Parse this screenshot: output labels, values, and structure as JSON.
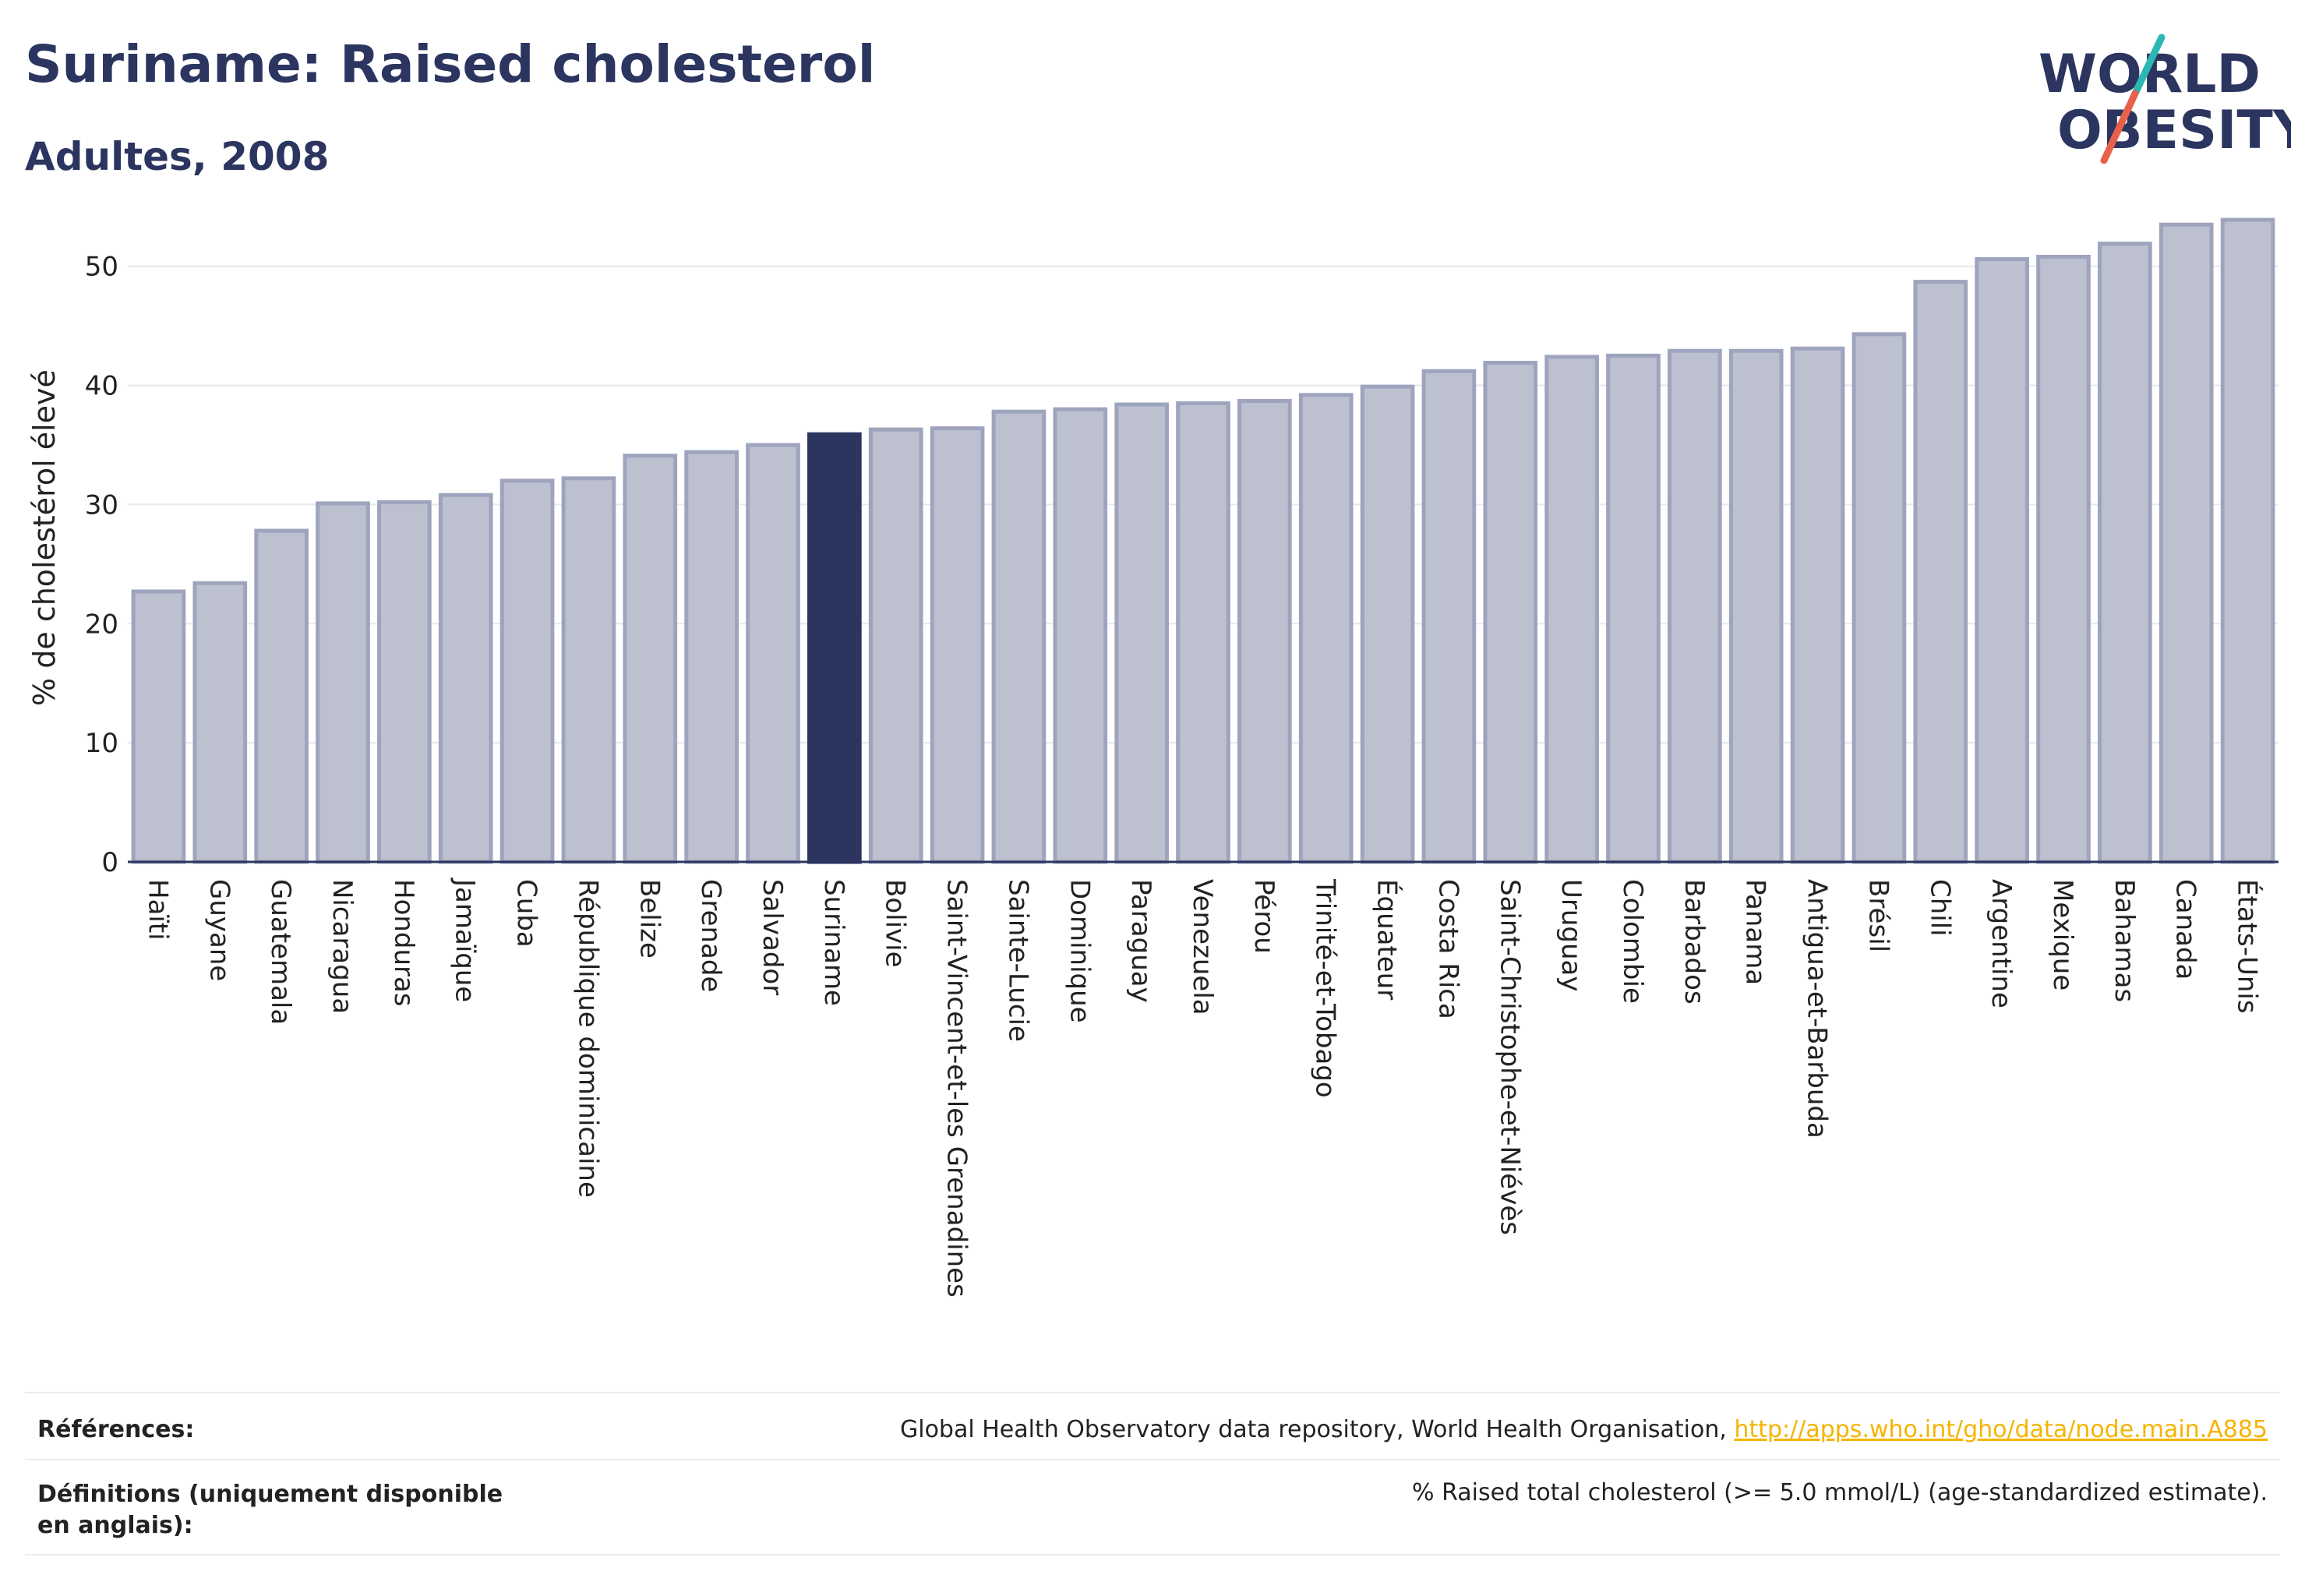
{
  "header": {
    "title": "Suriname: Raised cholesterol",
    "subtitle": "Adultes, 2008"
  },
  "logo": {
    "line1": "WORLD",
    "line2": "OBESITY",
    "colors": {
      "text": "#2b3560",
      "slash_teal": "#2bb7b3",
      "slash_red": "#e8604c"
    }
  },
  "colors": {
    "bar": "#bcc0cf",
    "bar_border": "#9ea4bd",
    "highlight": "#2b3560",
    "grid": "#e6e8ef",
    "axis": "#2b3560"
  },
  "chart_data": {
    "type": "bar",
    "title": "Suriname: Raised cholesterol",
    "subtitle": "Adultes, 2008",
    "xlabel": "",
    "ylabel": "% de cholestérol élevé",
    "ylim": [
      0,
      56
    ],
    "yticks": [
      0,
      10,
      20,
      30,
      40,
      50
    ],
    "grid": true,
    "highlight": "Suriname",
    "categories": [
      "Haïti",
      "Guyane",
      "Guatemala",
      "Nicaragua",
      "Honduras",
      "Jamaïque",
      "Cuba",
      "République dominicaine",
      "Belize",
      "Grenade",
      "Salvador",
      "Suriname",
      "Bolivie",
      "Saint-Vincent-et-les Grenadines",
      "Sainte-Lucie",
      "Dominique",
      "Paraguay",
      "Venezuela",
      "Pérou",
      "Trinité-et-Tobago",
      "Équateur",
      "Costa Rica",
      "Saint-Christophe-et-Niévès",
      "Uruguay",
      "Colombie",
      "Barbados",
      "Panama",
      "Antigua-et-Barbuda",
      "Brésil",
      "Chili",
      "Argentine",
      "Mexique",
      "Bahamas",
      "Canada",
      "États-Unis"
    ],
    "values": [
      22.7,
      23.4,
      27.8,
      30.1,
      30.2,
      30.8,
      32.0,
      32.2,
      34.1,
      34.4,
      35.0,
      35.9,
      36.3,
      36.4,
      37.8,
      38.0,
      38.4,
      38.5,
      38.7,
      39.2,
      39.9,
      41.2,
      41.9,
      42.4,
      42.5,
      42.9,
      42.9,
      43.1,
      44.3,
      48.7,
      50.6,
      50.8,
      51.9,
      53.5,
      53.9
    ]
  },
  "footer": {
    "references_label": "Références:",
    "references_text": "Global Health Observatory data repository, World Health Organisation,",
    "references_link": "http://apps.who.int/gho/data/node.main.A885",
    "definitions_label": "Définitions (uniquement disponible en anglais):",
    "definitions_text": "% Raised total cholesterol (>= 5.0 mmol/L) (age-standardized estimate)."
  }
}
